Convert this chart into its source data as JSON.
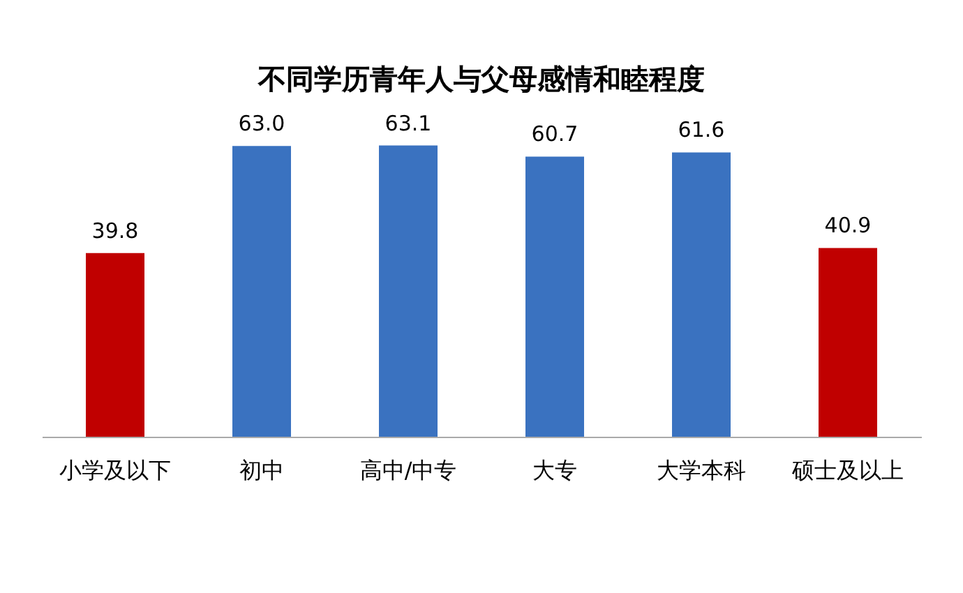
{
  "chart_data": {
    "type": "bar",
    "title": "不同学历青年人与父母感情和睦程度",
    "categories": [
      "小学及以下",
      "初中",
      "高中/中专",
      "大专",
      "大学本科",
      "硕士及以上"
    ],
    "values": [
      39.8,
      63.0,
      63.1,
      60.7,
      61.6,
      40.9
    ],
    "value_labels": [
      "39.8",
      "63.0",
      "63.1",
      "60.7",
      "61.6",
      "40.9"
    ],
    "colors": [
      "#c00000",
      "#3a72c0",
      "#3a72c0",
      "#3a72c0",
      "#3a72c0",
      "#c00000"
    ],
    "tick_labels": "x",
    "grid": false
  }
}
